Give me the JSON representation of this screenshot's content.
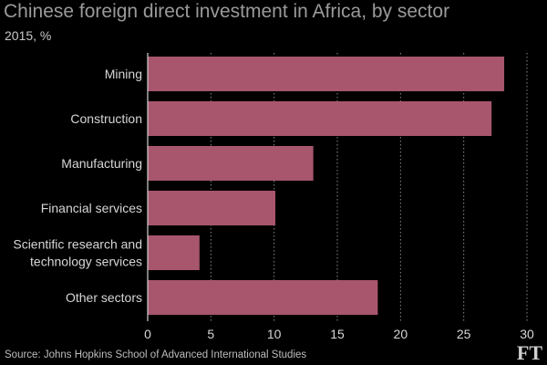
{
  "header": {
    "title": "Chinese foreign direct investment in Africa, by sector",
    "subtitle": "2015, %"
  },
  "footer": {
    "source": "Source: Johns Hopkins School of Advanced International Studies",
    "logo": "FT"
  },
  "colors": {
    "bar": "#a8566d",
    "grid": "#8a8a8a",
    "axis": "#d0d0d0"
  },
  "chart_data": {
    "type": "bar",
    "orientation": "horizontal",
    "title": "Chinese foreign direct investment in Africa, by sector",
    "subtitle": "2015, %",
    "categories": [
      [
        "Mining"
      ],
      [
        "Construction"
      ],
      [
        "Manufacturing"
      ],
      [
        "Financial services"
      ],
      [
        "Scientific research and",
        "technology services"
      ],
      [
        "Other sectors"
      ]
    ],
    "values": [
      28.2,
      27.2,
      13.1,
      10.1,
      4.1,
      18.2
    ],
    "xlim": [
      0,
      30
    ],
    "xticks": [
      0,
      5,
      10,
      15,
      20,
      25,
      30
    ],
    "grid": "vertical dotted",
    "legend": "none"
  }
}
